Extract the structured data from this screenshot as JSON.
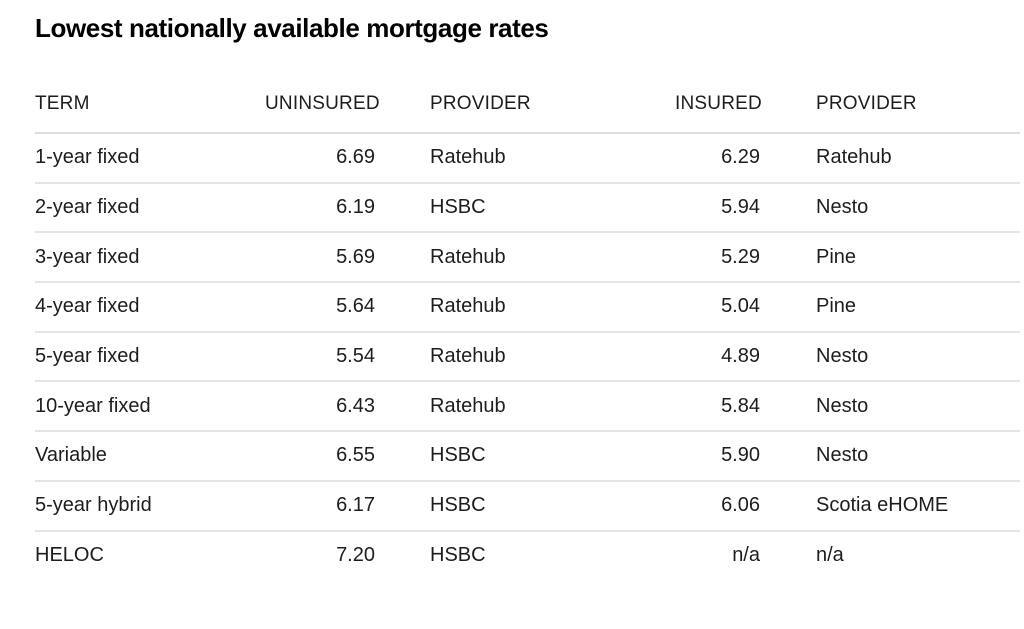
{
  "title": "Lowest nationally available mortgage rates",
  "colors": {
    "text": "#1d1d1d",
    "title": "#000000",
    "rule": "#e5e5e5",
    "header_rule": "#dedede",
    "background": "#ffffff"
  },
  "chart_data": {
    "type": "table",
    "title": "Lowest nationally available mortgage rates",
    "columns": [
      "TERM",
      "UNINSURED",
      "PROVIDER",
      "INSURED",
      "PROVIDER"
    ],
    "rows": [
      [
        "1-year fixed",
        "6.69",
        "Ratehub",
        "6.29",
        "Ratehub"
      ],
      [
        "2-year fixed",
        "6.19",
        "HSBC",
        "5.94",
        "Nesto"
      ],
      [
        "3-year fixed",
        "5.69",
        "Ratehub",
        "5.29",
        "Pine"
      ],
      [
        "4-year fixed",
        "5.64",
        "Ratehub",
        "5.04",
        "Pine"
      ],
      [
        "5-year fixed",
        "5.54",
        "Ratehub",
        "4.89",
        "Nesto"
      ],
      [
        "10-year fixed",
        "6.43",
        "Ratehub",
        "5.84",
        "Nesto"
      ],
      [
        "Variable",
        "6.55",
        "HSBC",
        "5.90",
        "Nesto"
      ],
      [
        "5-year hybrid",
        "6.17",
        "HSBC",
        "6.06",
        "Scotia eHOME"
      ],
      [
        "HELOC",
        "7.20",
        "HSBC",
        "n/a",
        "n/a"
      ]
    ],
    "layout": {
      "grid": "horizontal row separators only",
      "numeric_columns_right_aligned": true,
      "last_row_no_bottom_rule": true
    }
  }
}
